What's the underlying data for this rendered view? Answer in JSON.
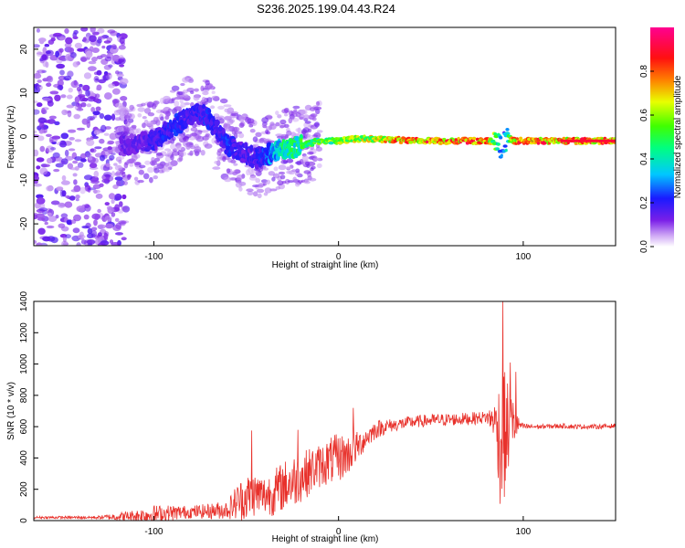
{
  "chart_data": [
    {
      "type": "heatmap",
      "title": "S236.2025.199.04.43.R24",
      "xlabel": "Height of straight line (km)",
      "ylabel": "Frequency (Hz)",
      "xlim": [
        -165,
        150
      ],
      "ylim": [
        -25,
        25
      ],
      "xticks": [
        -100,
        0,
        100
      ],
      "yticks": [
        -20,
        -10,
        0,
        10,
        20
      ],
      "colorbar": {
        "label": "Normalized spectral amplitude",
        "range": [
          0,
          1
        ],
        "ticks": [
          0,
          0.2,
          0.4,
          0.6,
          0.8
        ],
        "tick_labels": [
          "0.0",
          "0.2",
          "0.4",
          "0.6",
          "0.8"
        ],
        "colormap": "rainbow (white-violet-blue-cyan-green-yellow-red-magenta)"
      },
      "ridge": {
        "description": "dominant frequency ridge",
        "x": [
          -115,
          -100,
          -90,
          -80,
          -72,
          -65,
          -60,
          -55,
          -45,
          -38,
          -30,
          -20,
          -10,
          0,
          10,
          20,
          40,
          60,
          80,
          85,
          88,
          90,
          95,
          100,
          120,
          150
        ],
        "y": [
          -2,
          -1,
          2,
          5,
          5,
          1,
          -2,
          -3,
          -5,
          -4,
          -3,
          -2,
          -1,
          -1,
          -0.5,
          -0.5,
          -1,
          -1,
          -1,
          -1,
          -3,
          0,
          -1,
          -1,
          -1,
          -1
        ],
        "amplitude": [
          0.15,
          0.2,
          0.25,
          0.2,
          0.25,
          0.2,
          0.25,
          0.2,
          0.2,
          0.3,
          0.5,
          0.55,
          0.6,
          0.65,
          0.7,
          0.75,
          0.9,
          0.9,
          0.9,
          0.6,
          0.3,
          0.3,
          0.85,
          0.9,
          0.9,
          0.9
        ]
      },
      "grid": false
    },
    {
      "type": "line",
      "xlabel": "Height of straight line (km)",
      "ylabel": "SNR (10 * v/v)",
      "xlim": [
        -165,
        150
      ],
      "ylim": [
        0,
        1400
      ],
      "xticks": [
        -100,
        0,
        100
      ],
      "yticks": [
        0,
        200,
        400,
        600,
        800,
        1000,
        1200,
        1400
      ],
      "color": "#e8312b",
      "envelope": {
        "x": [
          -165,
          -130,
          -110,
          -100,
          -90,
          -80,
          -70,
          -60,
          -55,
          -50,
          -45,
          -40,
          -35,
          -30,
          -25,
          -20,
          -15,
          -10,
          -5,
          0,
          5,
          10,
          15,
          20,
          25,
          30,
          40,
          50,
          60,
          70,
          80,
          85,
          88,
          90,
          92,
          95,
          98,
          100,
          110,
          120,
          130,
          140,
          150
        ],
        "base": [
          20,
          20,
          30,
          40,
          50,
          55,
          60,
          70,
          120,
          150,
          170,
          160,
          180,
          220,
          250,
          280,
          320,
          350,
          380,
          400,
          420,
          470,
          530,
          580,
          600,
          610,
          630,
          640,
          645,
          650,
          660,
          640,
          500,
          550,
          580,
          620,
          610,
          600,
          600,
          605,
          600,
          600,
          605
        ],
        "spread": [
          8,
          10,
          40,
          60,
          50,
          40,
          50,
          60,
          120,
          150,
          140,
          130,
          150,
          160,
          170,
          160,
          150,
          140,
          150,
          160,
          130,
          100,
          70,
          60,
          50,
          40,
          40,
          40,
          40,
          40,
          40,
          120,
          500,
          400,
          300,
          150,
          30,
          20,
          15,
          15,
          15,
          15,
          15
        ]
      },
      "peaks": [
        {
          "x": -47,
          "y": 575
        },
        {
          "x": -22,
          "y": 580
        },
        {
          "x": 8,
          "y": 720
        },
        {
          "x": 89,
          "y": 1400
        },
        {
          "x": 93,
          "y": 1010
        },
        {
          "x": 96,
          "y": 950
        }
      ],
      "grid": false
    }
  ]
}
